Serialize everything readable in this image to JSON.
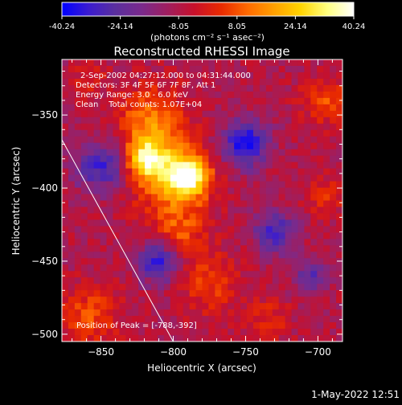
{
  "colors": {
    "background": "#000000",
    "foreground": "#ffffff",
    "colormap": [
      "#0000ff",
      "#3b1bd0",
      "#5a2f9e",
      "#7a2a8c",
      "#a01e5e",
      "#c8102a",
      "#e82a00",
      "#ff6a00",
      "#ffa000",
      "#ffd400",
      "#ffff80",
      "#ffffff"
    ]
  },
  "colorbar": {
    "ticks": [
      "-40.24",
      "-24.14",
      "-8.05",
      "8.05",
      "24.14",
      "40.24"
    ],
    "range": [
      -40.24,
      40.24
    ],
    "unit_label": "(photons cm⁻² s⁻¹ asec⁻²)"
  },
  "chart_data": {
    "type": "heatmap",
    "title": "Reconstructed RHESSI Image",
    "xlabel": "Heliocentric X (arcsec)",
    "ylabel": "Heliocentric Y (arcsec)",
    "xlim": [
      -877,
      -683
    ],
    "ylim": [
      -505,
      -312
    ],
    "x_ticks": [
      -850,
      -800,
      -750,
      -700
    ],
    "y_ticks": [
      -500,
      -450,
      -400,
      -350
    ],
    "info_lines": [
      "2-Sep-2002 04:27:12.000 to 04:31:44.000",
      "Detectors: 3F 4F 5F 6F 7F 8F, Att 1",
      "Energy Range: 3.0 - 6.0 keV",
      "Clean    Total counts: 1.07E+04"
    ],
    "peak_label": "Position of Peak = [-788,-392]",
    "peak": [
      -788,
      -392
    ],
    "limb_line": [
      [
        -877,
        -367
      ],
      [
        -800,
        -505
      ]
    ],
    "value_range": [
      -40.24,
      40.24
    ],
    "sources": [
      {
        "name": "main-bright-core",
        "x": -790,
        "y": -392,
        "sigma": 10,
        "amp": 40
      },
      {
        "name": "left-bright-core",
        "x": -818,
        "y": -380,
        "sigma": 9,
        "amp": 34
      },
      {
        "name": "upper-flare-body",
        "x": -815,
        "y": -355,
        "sigma": 16,
        "amp": 22
      },
      {
        "name": "mid-flare-body",
        "x": -803,
        "y": -395,
        "sigma": 18,
        "amp": 20
      },
      {
        "name": "lower-extension",
        "x": -795,
        "y": -430,
        "sigma": 12,
        "amp": 14
      },
      {
        "name": "top-right-patch",
        "x": -695,
        "y": -340,
        "sigma": 11,
        "amp": 14
      },
      {
        "name": "right-mid-patch",
        "x": -695,
        "y": -405,
        "sigma": 9,
        "amp": 11
      },
      {
        "name": "bottom-left-patch",
        "x": -858,
        "y": -488,
        "sigma": 14,
        "amp": 15
      },
      {
        "name": "bottom-center-patch",
        "x": -775,
        "y": -465,
        "sigma": 14,
        "amp": 13
      },
      {
        "name": "bottom-right-patch",
        "x": -735,
        "y": -490,
        "sigma": 10,
        "amp": 10
      },
      {
        "name": "upper-left-patch",
        "x": -858,
        "y": -325,
        "sigma": 8,
        "amp": 8
      },
      {
        "name": "dip-left",
        "x": -850,
        "y": -385,
        "sigma": 12,
        "amp": -24
      },
      {
        "name": "dip-center",
        "x": -810,
        "y": -450,
        "sigma": 10,
        "amp": -26
      },
      {
        "name": "dip-right",
        "x": -750,
        "y": -370,
        "sigma": 11,
        "amp": -30
      },
      {
        "name": "dip-right-lower",
        "x": -730,
        "y": -430,
        "sigma": 10,
        "amp": -22
      },
      {
        "name": "dip-far-right",
        "x": -705,
        "y": -460,
        "sigma": 8,
        "amp": -18
      }
    ]
  },
  "footer": {
    "timestamp": "1-May-2022 12:51"
  }
}
